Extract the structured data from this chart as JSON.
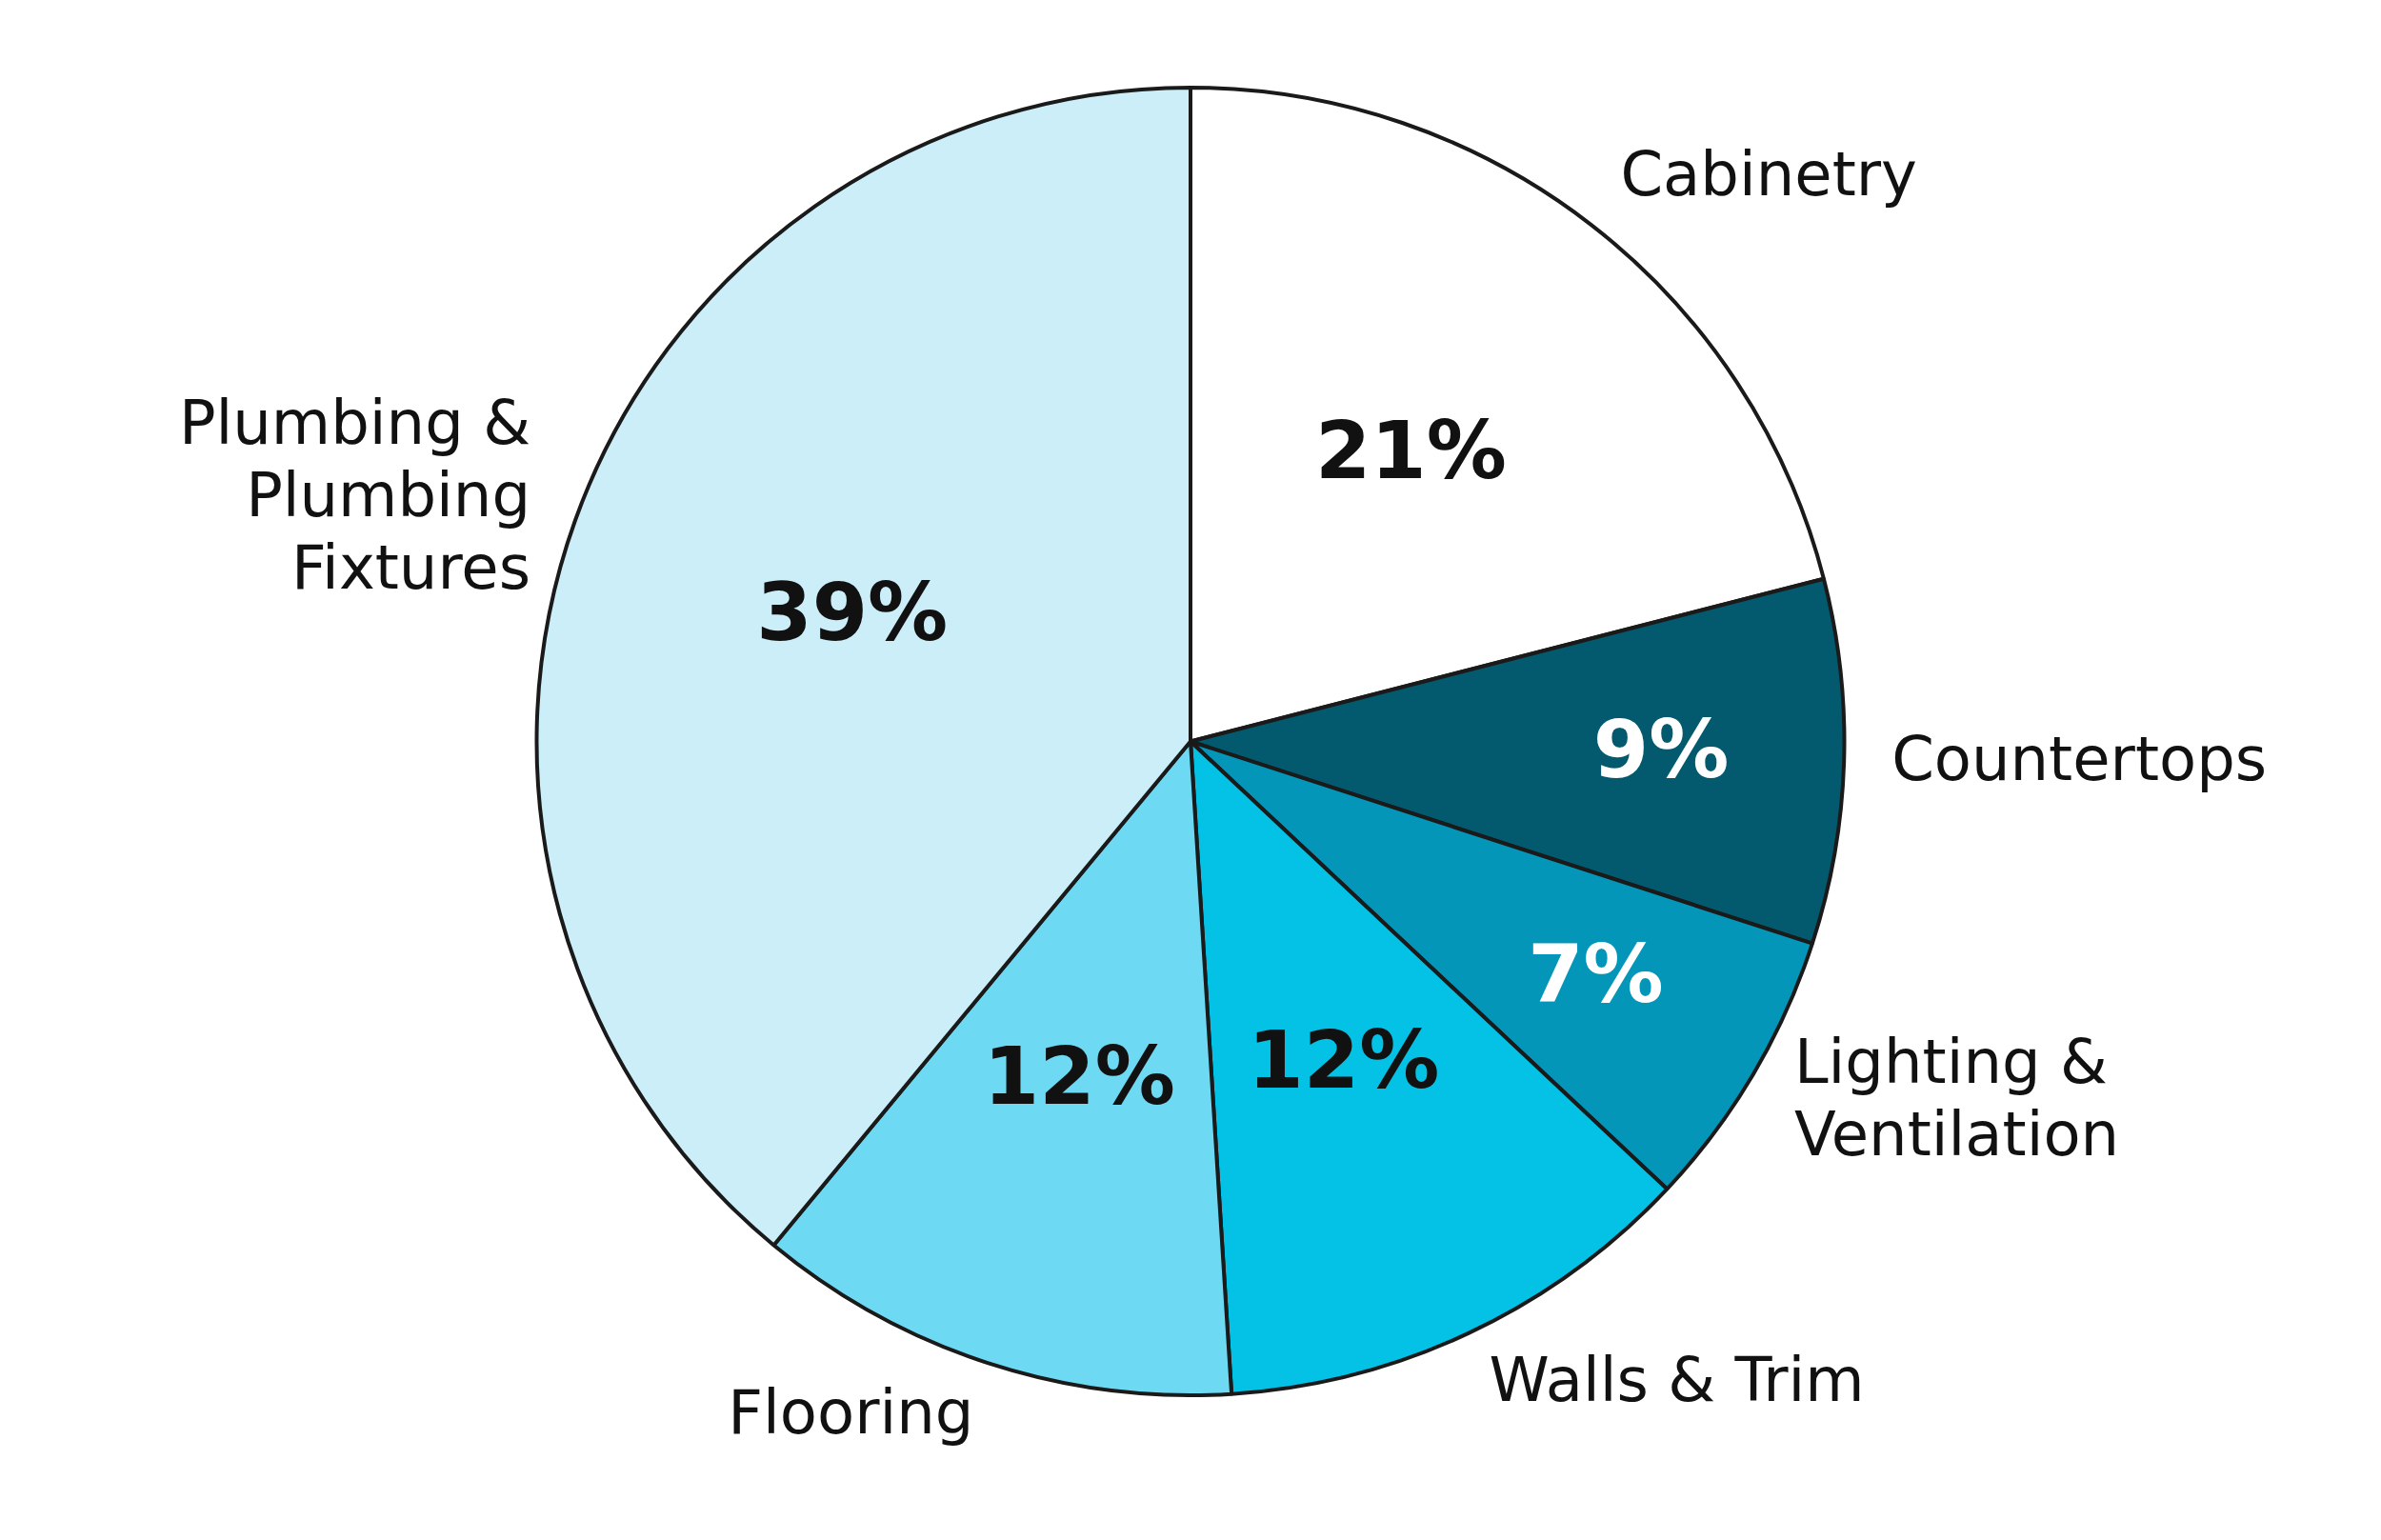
{
  "chart_data": {
    "type": "pie",
    "categories": [
      "Cabinetry",
      "Countertops",
      "Lighting & Ventilation",
      "Walls & Trim",
      "Flooring",
      "Plumbing & Plumbing Fixtures"
    ],
    "values": [
      21,
      9,
      7,
      12,
      12,
      39
    ],
    "colors": [
      "#ffffff",
      "#035a6e",
      "#0396b8",
      "#04c1e6",
      "#6ed9f3",
      "#cbeef9"
    ],
    "value_labels": [
      "21%",
      "9%",
      "7%",
      "12%",
      "12%",
      "39%"
    ],
    "legend": false
  }
}
